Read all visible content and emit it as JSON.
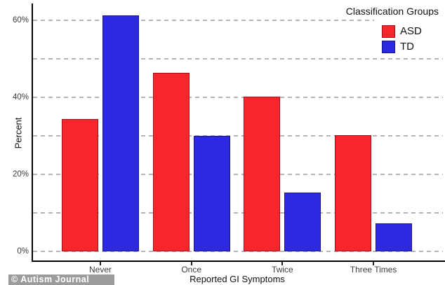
{
  "chart_data": {
    "type": "bar",
    "title": "",
    "xlabel": "Reported GI Symptoms",
    "ylabel": "Percent",
    "categories": [
      "Never",
      "Once",
      "Twice",
      "Three Times"
    ],
    "series": [
      {
        "name": "ASD",
        "fill": "#f8252c",
        "border": "#99161a",
        "values": [
          34.4,
          46.4,
          40.1,
          30.1
        ]
      },
      {
        "name": "TD",
        "fill": "#2c29e1",
        "border": "#191687",
        "values": [
          61.3,
          30.0,
          15.2,
          7.2
        ]
      }
    ],
    "yticks": [
      {
        "value": 0,
        "label": "0%"
      },
      {
        "value": 20,
        "label": "20%"
      },
      {
        "value": 40,
        "label": "40%"
      },
      {
        "value": 60,
        "label": "60%"
      }
    ],
    "gridlines": [
      0,
      10,
      20,
      30,
      40,
      50,
      60
    ],
    "ylim": [
      0,
      65
    ],
    "grid": "dashed-horizontal",
    "legend": {
      "title": "Classification Groups",
      "position": "top-right"
    }
  },
  "watermark": "© Autism Journal",
  "colors": {
    "grid": "#b4b4b4",
    "axis": "#000000",
    "asd": "#f8252c",
    "td": "#2c29e1",
    "watermark_bg": "#9c9c9c",
    "watermark_text": "#ffffff"
  }
}
